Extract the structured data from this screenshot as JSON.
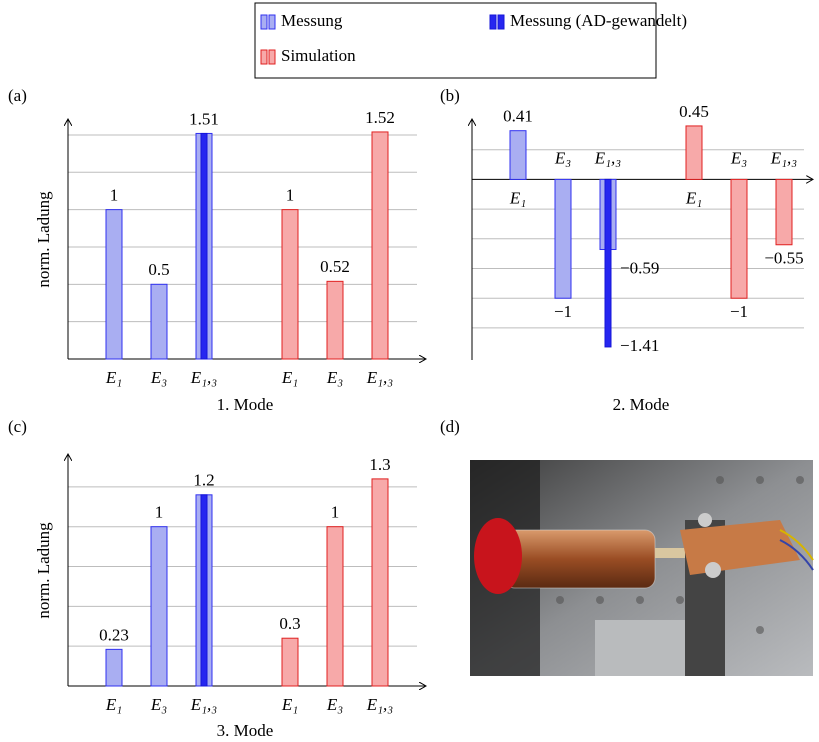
{
  "panels": [
    "(a)",
    "(b)",
    "(c)",
    "(d)"
  ],
  "chart_data": [
    {
      "type": "bar",
      "title": "1. Mode",
      "ylabel": "norm. Ladung",
      "categories": [
        "E₁",
        "E₃",
        "E₁,₃",
        "E₁",
        "E₃",
        "E₁,₃"
      ],
      "series": [
        {
          "name": "Messung",
          "color": "#a9aef2",
          "values": [
            1,
            0.5,
            1.51,
            null,
            null,
            null
          ],
          "show_labels": true
        },
        {
          "name": "Messung (AD-gewandelt)",
          "color": "#2626f0",
          "values": [
            null,
            null,
            1.51,
            null,
            null,
            null
          ],
          "show_labels": false
        },
        {
          "name": "Simulation",
          "color": "#f7a9a9",
          "values": [
            null,
            null,
            null,
            1,
            0.52,
            1.52
          ],
          "show_labels": true
        }
      ],
      "ylim": [
        0,
        1.6
      ],
      "yticks": [
        0.25,
        0.5,
        0.75,
        1,
        1.25,
        1.5
      ],
      "grid": true,
      "show_ytick_labels": false
    },
    {
      "type": "bar",
      "title": "2. Mode",
      "categories": [
        "E₁",
        "E₃",
        "E₁,₃",
        "E₁",
        "E₃",
        "E₁,₃"
      ],
      "series": [
        {
          "name": "Messung",
          "color": "#a9aef2",
          "values": [
            0.41,
            -1,
            -0.59,
            null,
            null,
            null
          ],
          "value_labels": [
            "0.41",
            "−1",
            "−0.59",
            null,
            null,
            null
          ],
          "show_labels": true
        },
        {
          "name": "Messung (AD-gewandelt)",
          "color": "#2626f0",
          "values": [
            null,
            null,
            -1.41,
            null,
            null,
            null
          ],
          "value_labels": [
            null,
            null,
            "−1.41",
            null,
            null,
            null
          ],
          "show_labels": true
        },
        {
          "name": "Simulation",
          "color": "#f7a9a9",
          "values": [
            null,
            null,
            null,
            0.45,
            -1,
            -0.55
          ],
          "value_labels": [
            null,
            null,
            null,
            "0.45",
            "−1",
            "−0.55"
          ],
          "show_labels": true
        }
      ],
      "ylim": [
        -1.52,
        0.5
      ],
      "yticks": [
        -1.25,
        -1,
        -0.75,
        -0.5,
        -0.25,
        0.25
      ],
      "grid": true,
      "show_ytick_labels": false
    },
    {
      "type": "bar",
      "title": "3. Mode",
      "ylabel": "norm. Ladung",
      "categories": [
        "E₁",
        "E₃",
        "E₁,₃",
        "E₁",
        "E₃",
        "E₁,₃"
      ],
      "series": [
        {
          "name": "Messung",
          "color": "#a9aef2",
          "values": [
            0.23,
            1,
            1.2,
            null,
            null,
            null
          ],
          "show_labels": true
        },
        {
          "name": "Messung (AD-gewandelt)",
          "color": "#2626f0",
          "values": [
            null,
            null,
            1.2,
            null,
            null,
            null
          ],
          "show_labels": false
        },
        {
          "name": "Simulation",
          "color": "#f7a9a9",
          "values": [
            null,
            null,
            null,
            0.3,
            1,
            1.3
          ],
          "show_labels": true
        }
      ],
      "ylim": [
        0,
        1.45
      ],
      "yticks": [
        0.25,
        0.5,
        0.75,
        1,
        1.25
      ],
      "grid": true,
      "show_ytick_labels": false
    }
  ]
}
